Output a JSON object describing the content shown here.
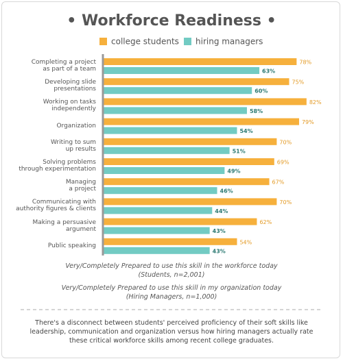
{
  "chart_data": {
    "type": "bar",
    "orientation": "horizontal",
    "title": "• Workforce Readiness •",
    "categories": [
      "Completing a project\nas part of a team",
      "Developing slide\npresentations",
      "Working on tasks\nindependently",
      "Organization",
      "Writing to sum\nup results",
      "Solving problems\nthrough experimentation",
      "Managing\na project",
      "Communicating with\nauthority figures & clients",
      "Making a persuasive\nargument",
      "Public speaking"
    ],
    "series": [
      {
        "name": "college students",
        "color": "#f6b03c",
        "label_color": "#e39a25",
        "values": [
          78,
          75,
          82,
          79,
          70,
          69,
          67,
          70,
          62,
          54
        ],
        "value_labels": [
          "78%",
          "75%",
          "82%",
          "79%",
          "70%",
          "69%",
          "67%",
          "70%",
          "62%",
          "54%"
        ]
      },
      {
        "name": "hiring managers",
        "color": "#72cbc3",
        "label_color": "#2c7a73",
        "values": [
          63,
          60,
          58,
          54,
          51,
          49,
          46,
          44,
          43,
          43
        ],
        "value_labels": [
          "63%",
          "60%",
          "58%",
          "54%",
          "51%",
          "49%",
          "46%",
          "44%",
          "43%",
          "43%"
        ]
      }
    ],
    "notes": [
      "Very/Completely Prepared to use this skill in the workforce today\n(Students, n=2,001)",
      "Very/Completely Prepared to use this skill in my organization today\n(Hiring Managers, n=1,000)"
    ],
    "footer": "There's a disconnect between students' perceived proficiency of their soft skills like leadership, communication and organization versus how hiring managers actually rate these critical workforce skills among recent college graduates."
  }
}
